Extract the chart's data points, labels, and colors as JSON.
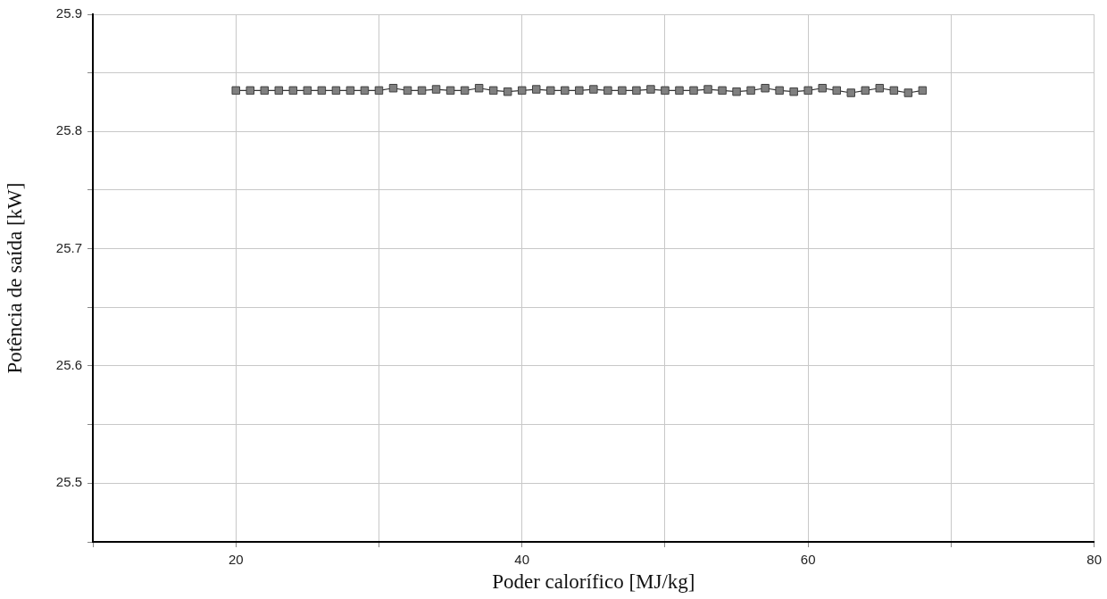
{
  "chart_data": {
    "type": "line",
    "xlabel": "Poder calorífico [MJ/kg]",
    "ylabel": "Potência de saída [kW]",
    "x": [
      20,
      21,
      22,
      23,
      24,
      25,
      26,
      27,
      28,
      29,
      30,
      31,
      32,
      33,
      34,
      35,
      36,
      37,
      38,
      39,
      40,
      41,
      42,
      43,
      44,
      45,
      46,
      47,
      48,
      49,
      50,
      51,
      52,
      53,
      54,
      55,
      56,
      57,
      58,
      59,
      60,
      61,
      62,
      63,
      64,
      65,
      66,
      67,
      68
    ],
    "series": [
      {
        "color": "#808080",
        "values": [
          25.835,
          25.835,
          25.835,
          25.835,
          25.835,
          25.835,
          25.835,
          25.835,
          25.835,
          25.835,
          25.835,
          25.837,
          25.835,
          25.835,
          25.836,
          25.835,
          25.835,
          25.837,
          25.835,
          25.834,
          25.835,
          25.836,
          25.835,
          25.835,
          25.835,
          25.836,
          25.835,
          25.835,
          25.835,
          25.836,
          25.835,
          25.835,
          25.835,
          25.836,
          25.835,
          25.834,
          25.835,
          25.837,
          25.835,
          25.834,
          25.835,
          25.837,
          25.835,
          25.833,
          25.835,
          25.837,
          25.835,
          25.833,
          25.835
        ]
      }
    ],
    "xlim": [
      10,
      80
    ],
    "xticks": [
      {
        "value": 10,
        "label": null
      },
      20,
      {
        "value": 30,
        "label": null
      },
      40,
      {
        "value": 50,
        "label": null
      },
      60,
      {
        "value": 70,
        "label": null
      },
      80
    ],
    "ylim": [
      25.45,
      25.9
    ],
    "yticks": [
      {
        "value": 25.45,
        "label": null
      },
      25.5,
      {
        "value": 25.55,
        "label": null
      },
      25.6,
      {
        "value": 25.65,
        "label": null
      },
      25.7,
      {
        "value": 25.75,
        "label": null
      },
      25.8,
      {
        "value": 25.85,
        "label": null
      },
      25.9
    ],
    "grid": true,
    "legend": false,
    "marker": "square",
    "line_style": "solid"
  }
}
